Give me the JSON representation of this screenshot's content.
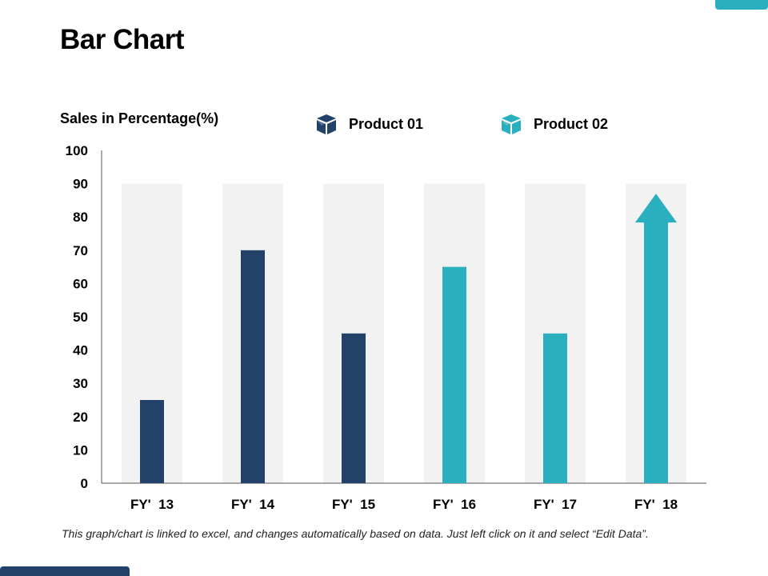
{
  "title": "Bar Chart",
  "footnote": "This graph/chart is linked to excel, and changes automatically based on data. Just left click on it and select “Edit Data”.",
  "colors": {
    "product_01": "#22426a",
    "product_02": "#2aafbf",
    "band": "#f2f2f2",
    "axis": "#555555"
  },
  "legend": [
    {
      "label": "Product 01",
      "icon": "package-box-icon",
      "color": "#22426a"
    },
    {
      "label": "Product 02",
      "icon": "package-box-icon",
      "color": "#2aafbf"
    }
  ],
  "chart_data": {
    "type": "bar",
    "ylabel": "Sales in Percentage(%)",
    "xlabel": "",
    "ylim": [
      0,
      100
    ],
    "yticks": [
      0,
      10,
      20,
      30,
      40,
      50,
      60,
      70,
      80,
      90,
      100
    ],
    "categories": [
      "FY'  13",
      "FY'  14",
      "FY'  15",
      "FY'  16",
      "FY'  17",
      "FY'  18"
    ],
    "background_band_value": 90,
    "series": [
      {
        "name": "Product 01",
        "values": [
          25,
          70,
          45,
          null,
          null,
          null
        ]
      },
      {
        "name": "Product 02",
        "values": [
          null,
          null,
          null,
          65,
          45,
          87
        ]
      }
    ],
    "last_bar_shape": "arrow-up",
    "legend_position": "top",
    "grid": false
  }
}
